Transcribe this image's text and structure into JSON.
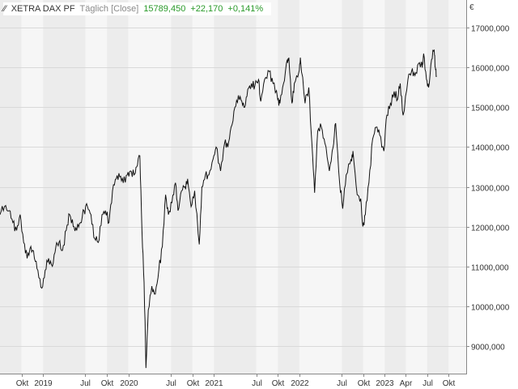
{
  "header": {
    "symbol": "XETRA DAX PF",
    "period": "Täglich [Close]",
    "last": "15789,450",
    "change": "+22,170",
    "change_pct": "+0,141%"
  },
  "currency": "€",
  "colors": {
    "positive": "#2a9a2a",
    "line": "#111111",
    "band_dark": "#ececec",
    "band_light": "#f6f6f6"
  },
  "chart_data": {
    "type": "line",
    "y_unit": "€",
    "ylim": [
      8300,
      17700
    ],
    "y_ticks": [
      "9000,000",
      "10000,000",
      "11000,000",
      "12000,000",
      "13000,000",
      "14000,000",
      "15000,000",
      "16000,000",
      "17000,000"
    ],
    "y_tick_values": [
      9000,
      10000,
      11000,
      12000,
      13000,
      14000,
      15000,
      16000,
      17000
    ],
    "x_range": [
      "2018-07-01",
      "2023-12-15"
    ],
    "x_ticks": [
      {
        "label": "Okt",
        "date": "2018-10-01"
      },
      {
        "label": "2019",
        "date": "2019-01-01"
      },
      {
        "label": "Jul",
        "date": "2019-07-01"
      },
      {
        "label": "Okt",
        "date": "2019-10-01"
      },
      {
        "label": "2020",
        "date": "2020-01-01"
      },
      {
        "label": "Jul",
        "date": "2020-07-01"
      },
      {
        "label": "Okt",
        "date": "2020-10-01"
      },
      {
        "label": "2021",
        "date": "2021-01-01"
      },
      {
        "label": "Jul",
        "date": "2021-07-01"
      },
      {
        "label": "Okt",
        "date": "2021-10-01"
      },
      {
        "label": "2022",
        "date": "2022-01-01"
      },
      {
        "label": "Jul",
        "date": "2022-07-01"
      },
      {
        "label": "Okt",
        "date": "2022-10-01"
      },
      {
        "label": "2023",
        "date": "2023-01-01"
      },
      {
        "label": "Apr",
        "date": "2023-04-01"
      },
      {
        "label": "Jul",
        "date": "2023-07-01"
      },
      {
        "label": "Okt",
        "date": "2023-10-01"
      }
    ],
    "series": [
      {
        "points": [
          {
            "x": "2018-07-01",
            "y": 12300
          },
          {
            "x": "2018-07-20",
            "y": 12500
          },
          {
            "x": "2018-08-10",
            "y": 12400
          },
          {
            "x": "2018-08-25",
            "y": 12100
          },
          {
            "x": "2018-09-10",
            "y": 11900
          },
          {
            "x": "2018-09-25",
            "y": 12300
          },
          {
            "x": "2018-10-10",
            "y": 11600
          },
          {
            "x": "2018-10-25",
            "y": 11200
          },
          {
            "x": "2018-11-10",
            "y": 11500
          },
          {
            "x": "2018-11-25",
            "y": 11200
          },
          {
            "x": "2018-12-10",
            "y": 10900
          },
          {
            "x": "2018-12-27",
            "y": 10450
          },
          {
            "x": "2019-01-10",
            "y": 10900
          },
          {
            "x": "2019-01-25",
            "y": 11200
          },
          {
            "x": "2019-02-10",
            "y": 11000
          },
          {
            "x": "2019-02-25",
            "y": 11500
          },
          {
            "x": "2019-03-10",
            "y": 11600
          },
          {
            "x": "2019-03-25",
            "y": 11400
          },
          {
            "x": "2019-04-10",
            "y": 11900
          },
          {
            "x": "2019-04-25",
            "y": 12300
          },
          {
            "x": "2019-05-10",
            "y": 12000
          },
          {
            "x": "2019-05-25",
            "y": 11900
          },
          {
            "x": "2019-06-10",
            "y": 12100
          },
          {
            "x": "2019-06-25",
            "y": 12400
          },
          {
            "x": "2019-07-10",
            "y": 12500
          },
          {
            "x": "2019-07-25",
            "y": 12300
          },
          {
            "x": "2019-08-10",
            "y": 11700
          },
          {
            "x": "2019-08-25",
            "y": 11600
          },
          {
            "x": "2019-09-10",
            "y": 12300
          },
          {
            "x": "2019-09-25",
            "y": 12400
          },
          {
            "x": "2019-10-10",
            "y": 12100
          },
          {
            "x": "2019-10-25",
            "y": 12900
          },
          {
            "x": "2019-11-10",
            "y": 13200
          },
          {
            "x": "2019-11-25",
            "y": 13250
          },
          {
            "x": "2019-12-10",
            "y": 13100
          },
          {
            "x": "2019-12-27",
            "y": 13300
          },
          {
            "x": "2020-01-10",
            "y": 13400
          },
          {
            "x": "2020-01-25",
            "y": 13300
          },
          {
            "x": "2020-02-05",
            "y": 13500
          },
          {
            "x": "2020-02-19",
            "y": 13780
          },
          {
            "x": "2020-02-28",
            "y": 11900
          },
          {
            "x": "2020-03-08",
            "y": 10600
          },
          {
            "x": "2020-03-16",
            "y": 8440
          },
          {
            "x": "2020-03-26",
            "y": 9900
          },
          {
            "x": "2020-04-10",
            "y": 10500
          },
          {
            "x": "2020-04-25",
            "y": 10300
          },
          {
            "x": "2020-05-10",
            "y": 10900
          },
          {
            "x": "2020-05-25",
            "y": 11500
          },
          {
            "x": "2020-06-08",
            "y": 12800
          },
          {
            "x": "2020-06-20",
            "y": 12300
          },
          {
            "x": "2020-07-05",
            "y": 12600
          },
          {
            "x": "2020-07-20",
            "y": 13100
          },
          {
            "x": "2020-07-31",
            "y": 12400
          },
          {
            "x": "2020-08-15",
            "y": 12900
          },
          {
            "x": "2020-08-30",
            "y": 13000
          },
          {
            "x": "2020-09-10",
            "y": 13200
          },
          {
            "x": "2020-09-25",
            "y": 12500
          },
          {
            "x": "2020-10-10",
            "y": 12900
          },
          {
            "x": "2020-10-30",
            "y": 11550
          },
          {
            "x": "2020-11-10",
            "y": 13000
          },
          {
            "x": "2020-11-25",
            "y": 13300
          },
          {
            "x": "2020-12-10",
            "y": 13300
          },
          {
            "x": "2020-12-28",
            "y": 13700
          },
          {
            "x": "2021-01-10",
            "y": 14000
          },
          {
            "x": "2021-01-29",
            "y": 13400
          },
          {
            "x": "2021-02-15",
            "y": 14100
          },
          {
            "x": "2021-03-01",
            "y": 14000
          },
          {
            "x": "2021-03-15",
            "y": 14500
          },
          {
            "x": "2021-03-31",
            "y": 15000
          },
          {
            "x": "2021-04-15",
            "y": 15300
          },
          {
            "x": "2021-04-30",
            "y": 15150
          },
          {
            "x": "2021-05-12",
            "y": 15000
          },
          {
            "x": "2021-05-25",
            "y": 15450
          },
          {
            "x": "2021-06-10",
            "y": 15600
          },
          {
            "x": "2021-06-25",
            "y": 15550
          },
          {
            "x": "2021-07-10",
            "y": 15700
          },
          {
            "x": "2021-07-20",
            "y": 15150
          },
          {
            "x": "2021-08-05",
            "y": 15700
          },
          {
            "x": "2021-08-25",
            "y": 15900
          },
          {
            "x": "2021-09-10",
            "y": 15600
          },
          {
            "x": "2021-09-30",
            "y": 15200
          },
          {
            "x": "2021-10-10",
            "y": 15100
          },
          {
            "x": "2021-10-25",
            "y": 15600
          },
          {
            "x": "2021-11-10",
            "y": 16200
          },
          {
            "x": "2021-11-17",
            "y": 16250
          },
          {
            "x": "2021-11-30",
            "y": 15100
          },
          {
            "x": "2021-12-10",
            "y": 15600
          },
          {
            "x": "2021-12-30",
            "y": 15900
          },
          {
            "x": "2022-01-05",
            "y": 16250
          },
          {
            "x": "2022-01-25",
            "y": 15100
          },
          {
            "x": "2022-02-10",
            "y": 15500
          },
          {
            "x": "2022-02-24",
            "y": 14050
          },
          {
            "x": "2022-03-07",
            "y": 12850
          },
          {
            "x": "2022-03-20",
            "y": 14400
          },
          {
            "x": "2022-04-05",
            "y": 14500
          },
          {
            "x": "2022-04-20",
            "y": 14100
          },
          {
            "x": "2022-05-09",
            "y": 13400
          },
          {
            "x": "2022-05-25",
            "y": 14000
          },
          {
            "x": "2022-06-05",
            "y": 14600
          },
          {
            "x": "2022-06-22",
            "y": 13100
          },
          {
            "x": "2022-07-05",
            "y": 12450
          },
          {
            "x": "2022-07-20",
            "y": 13300
          },
          {
            "x": "2022-08-10",
            "y": 13700
          },
          {
            "x": "2022-08-18",
            "y": 13900
          },
          {
            "x": "2022-09-05",
            "y": 12800
          },
          {
            "x": "2022-09-20",
            "y": 12700
          },
          {
            "x": "2022-09-29",
            "y": 12000
          },
          {
            "x": "2022-10-10",
            "y": 12300
          },
          {
            "x": "2022-10-25",
            "y": 13100
          },
          {
            "x": "2022-11-10",
            "y": 14200
          },
          {
            "x": "2022-11-25",
            "y": 14500
          },
          {
            "x": "2022-12-10",
            "y": 14300
          },
          {
            "x": "2022-12-28",
            "y": 13900
          },
          {
            "x": "2023-01-10",
            "y": 14800
          },
          {
            "x": "2023-01-25",
            "y": 15100
          },
          {
            "x": "2023-02-10",
            "y": 15400
          },
          {
            "x": "2023-02-25",
            "y": 15200
          },
          {
            "x": "2023-03-08",
            "y": 15600
          },
          {
            "x": "2023-03-20",
            "y": 14800
          },
          {
            "x": "2023-04-10",
            "y": 15700
          },
          {
            "x": "2023-04-25",
            "y": 15900
          },
          {
            "x": "2023-05-10",
            "y": 15800
          },
          {
            "x": "2023-05-25",
            "y": 16100
          },
          {
            "x": "2023-06-10",
            "y": 16000
          },
          {
            "x": "2023-06-16",
            "y": 16350
          },
          {
            "x": "2023-06-28",
            "y": 15700
          },
          {
            "x": "2023-07-07",
            "y": 15500
          },
          {
            "x": "2023-07-20",
            "y": 16200
          },
          {
            "x": "2023-07-31",
            "y": 16450
          },
          {
            "x": "2023-08-05",
            "y": 16000
          },
          {
            "x": "2023-08-10",
            "y": 15789
          }
        ]
      }
    ]
  }
}
